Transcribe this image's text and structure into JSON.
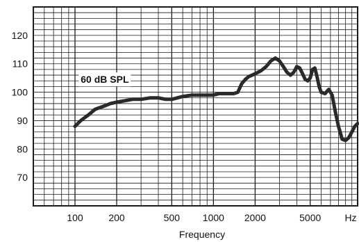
{
  "chart_data": {
    "type": "line",
    "title": "",
    "xlabel": "Frequency",
    "ylabel": "",
    "x_scale": "log",
    "xlim": [
      50,
      11000
    ],
    "ylim": [
      60,
      130
    ],
    "grid": true,
    "x_ticks": [
      {
        "value": 100,
        "label": "100"
      },
      {
        "value": 200,
        "label": "200"
      },
      {
        "value": 500,
        "label": "500"
      },
      {
        "value": 1000,
        "label": "1000"
      },
      {
        "value": 2000,
        "label": "2000"
      },
      {
        "value": 5000,
        "label": "5000"
      }
    ],
    "x_unit_label": "Hz",
    "y_ticks": [
      {
        "value": 70,
        "label": "70"
      },
      {
        "value": 80,
        "label": "80"
      },
      {
        "value": 90,
        "label": "90"
      },
      {
        "value": 100,
        "label": "100"
      },
      {
        "value": 110,
        "label": "110"
      },
      {
        "value": 120,
        "label": "120"
      }
    ],
    "annotation": {
      "text": "60 dB SPL",
      "x": 110,
      "y": 104.5
    },
    "series": [
      {
        "x": [
          100,
          110,
          125,
          140,
          160,
          180,
          200,
          230,
          260,
          300,
          350,
          400,
          450,
          500,
          550,
          600,
          700,
          800,
          900,
          1000,
          1100,
          1200,
          1300,
          1400,
          1500,
          1600,
          1700,
          1800,
          1900,
          2000,
          2200,
          2400,
          2600,
          2800,
          3000,
          3200,
          3400,
          3600,
          3800,
          4000,
          4200,
          4400,
          4600,
          4800,
          5000,
          5200,
          5400,
          5600,
          5800,
          6000,
          6400,
          6800,
          7200,
          7600,
          8000,
          8500,
          9000,
          9500,
          10000,
          10500,
          11000
        ],
        "y": [
          88,
          90,
          92,
          94,
          95,
          96,
          96.5,
          97,
          97.5,
          97.5,
          98,
          98,
          97.5,
          97.5,
          98,
          98.5,
          99,
          99,
          99,
          99,
          99.5,
          99.5,
          99.5,
          99.5,
          100,
          103,
          104.5,
          105.5,
          106,
          106.5,
          107.5,
          109,
          111,
          112,
          111,
          109,
          107,
          106,
          107,
          109,
          108.5,
          106.5,
          104.5,
          104,
          105,
          108,
          108.5,
          105.5,
          102,
          100,
          99.5,
          101,
          99,
          93,
          88,
          83.5,
          83,
          84,
          86,
          88,
          89
        ]
      }
    ],
    "line_color": "#2a2a2a",
    "grid_color": "#1a1a1a"
  }
}
